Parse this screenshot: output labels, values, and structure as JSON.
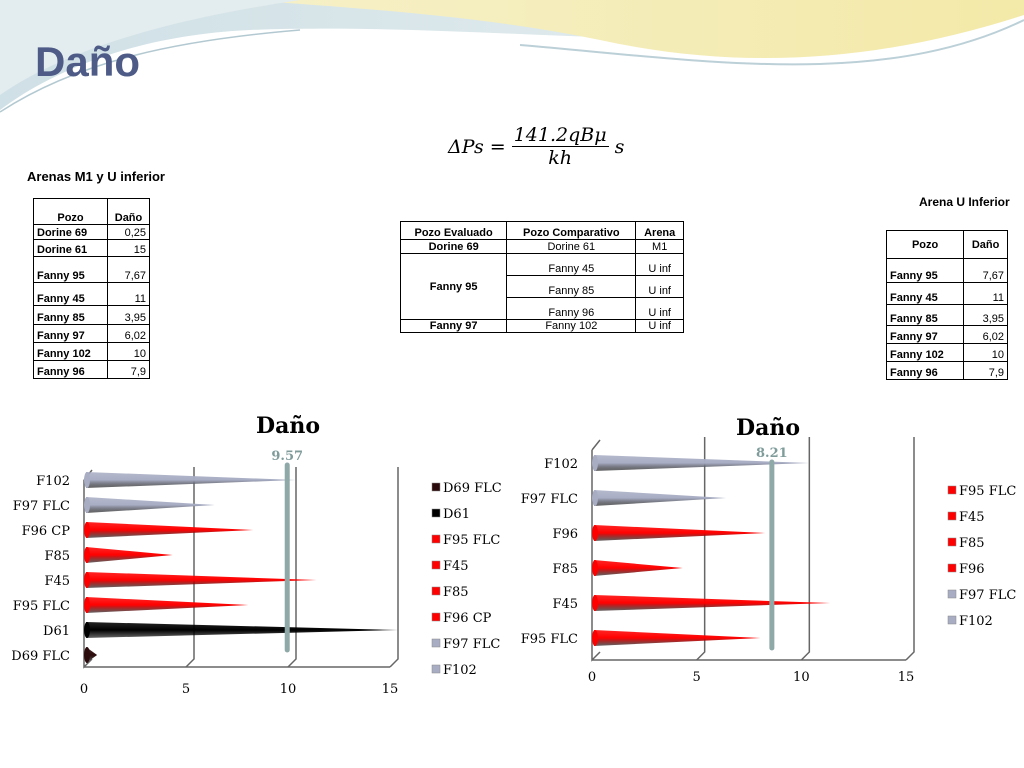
{
  "slide": {
    "title": "Daño",
    "formula": {
      "lhs": "ΔPs =",
      "numerator": "141.2qBμ",
      "denominator": "kh",
      "factor": "s"
    }
  },
  "left_section": {
    "heading": "Arenas M1 y U inferior",
    "headers": [
      "Pozo",
      "Daño"
    ],
    "rows": [
      [
        "Dorine 69",
        "0,25"
      ],
      [
        "Dorine 61",
        "15"
      ],
      [
        "Fanny 95",
        "7,67"
      ],
      [
        "Fanny 45",
        "11"
      ],
      [
        "Fanny 85",
        "3,95"
      ],
      [
        "Fanny 97",
        "6,02"
      ],
      [
        "Fanny 102",
        "10"
      ],
      [
        "Fanny 96",
        "7,9"
      ]
    ]
  },
  "comparison_table": {
    "headers": [
      "Pozo Evaluado",
      "Pozo Comparativo",
      "Arena"
    ],
    "rows": [
      {
        "evaluado": "Dorine 69",
        "comparativo": "Dorine 61",
        "arena": "M1"
      },
      {
        "evaluado": "Fanny 95",
        "comparativo": "Fanny 45",
        "arena": "U inf"
      },
      {
        "evaluado": "",
        "comparativo": "Fanny 85",
        "arena": "U inf"
      },
      {
        "evaluado": "",
        "comparativo": "Fanny 96",
        "arena": "U inf"
      },
      {
        "evaluado": "Fanny 97",
        "comparativo": "Fanny 102",
        "arena": "U inf"
      }
    ]
  },
  "right_section": {
    "heading": "Arena U Inferior",
    "headers": [
      "Pozo",
      "Daño"
    ],
    "rows": [
      [
        "Fanny 95",
        "7,67"
      ],
      [
        "Fanny 45",
        "11"
      ],
      [
        "Fanny 85",
        "3,95"
      ],
      [
        "Fanny 97",
        "6,02"
      ],
      [
        "Fanny 102",
        "10"
      ],
      [
        "Fanny 96",
        "7,9"
      ]
    ]
  },
  "chart_data": [
    {
      "type": "bar",
      "title": "Daño",
      "orientation": "horizontal",
      "marker_label": "9.57",
      "marker_value": 9.57,
      "categories": [
        "D69 FLC",
        "D61",
        "F95 FLC",
        "F45",
        "F85",
        "F96 CP",
        "F97 FLC",
        "F102"
      ],
      "values": [
        0.25,
        15,
        7.67,
        11,
        3.95,
        7.9,
        6.02,
        10
      ],
      "colors": [
        "#2a0a0a",
        "#000000",
        "#ff0000",
        "#ff0000",
        "#ff0000",
        "#ff0000",
        "#a8adc4",
        "#a8adc4"
      ],
      "legend": [
        "D69 FLC",
        "D61",
        "F95 FLC",
        "F45",
        "F85",
        "F96 CP",
        "F97 FLC",
        "F102"
      ],
      "legend_placement": "right",
      "xlim": [
        0,
        15
      ],
      "xticks": [
        "0",
        "5",
        "10",
        "15"
      ],
      "grid": true
    },
    {
      "type": "bar",
      "title": "Daño",
      "orientation": "horizontal",
      "marker_label": "8.21",
      "marker_value": 8.21,
      "categories": [
        "F95 FLC",
        "F45",
        "F85",
        "F96",
        "F97 FLC",
        "F102"
      ],
      "values": [
        7.67,
        11,
        3.95,
        7.9,
        6.02,
        10
      ],
      "colors": [
        "#ff0000",
        "#ff0000",
        "#ff0000",
        "#ff0000",
        "#a8adc4",
        "#a8adc4"
      ],
      "legend": [
        "F95 FLC",
        "F45",
        "F85",
        "F96",
        "F97 FLC",
        "F102"
      ],
      "legend_placement": "right",
      "xlim": [
        0,
        15
      ],
      "xticks": [
        "0",
        "5",
        "10",
        "15"
      ],
      "grid": true
    }
  ]
}
